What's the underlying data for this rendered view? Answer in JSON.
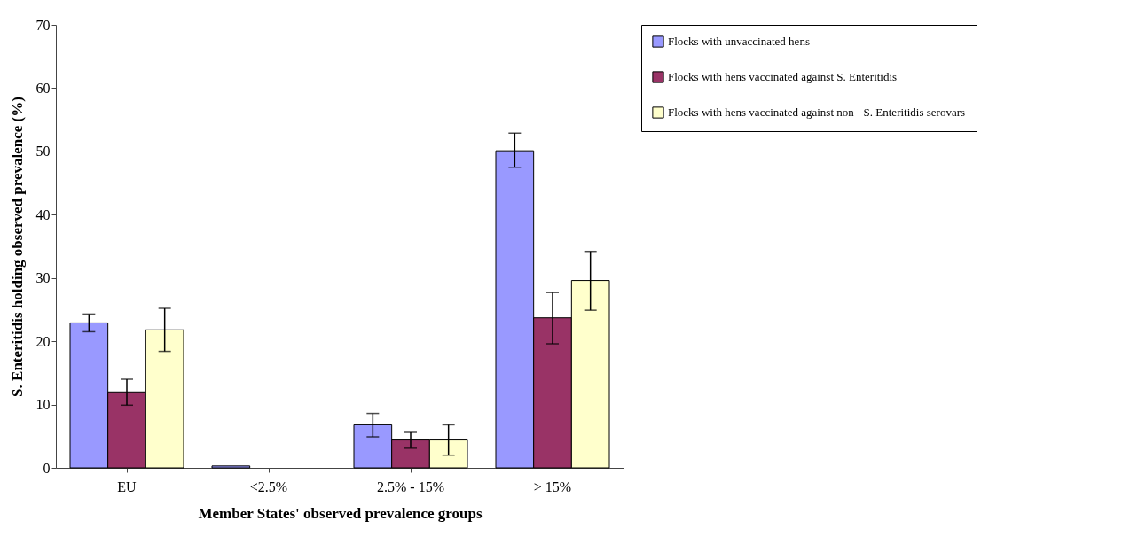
{
  "chart_data": {
    "type": "bar",
    "xlabel": "Member States' observed prevalence groups",
    "ylabel": "S. Enteritidis holding observed prevalence (%)",
    "categories": [
      "EU",
      "<2.5%",
      "2.5% - 15%",
      "> 15%"
    ],
    "series": [
      {
        "name": "Flocks with unvaccinated hens",
        "color": "#9999ff",
        "values": [
          22.9,
          0.3,
          6.8,
          50.1
        ],
        "errors": [
          [
            21.5,
            24.3
          ],
          null,
          [
            4.9,
            8.6
          ],
          [
            47.5,
            52.9
          ]
        ]
      },
      {
        "name": "Flocks with hens vaccinated against S. Enteritidis",
        "color": "#993366",
        "values": [
          12.0,
          null,
          4.4,
          23.7
        ],
        "errors": [
          [
            9.9,
            14.0
          ],
          null,
          [
            3.1,
            5.6
          ],
          [
            19.6,
            27.7
          ]
        ]
      },
      {
        "name": "Flocks with hens vaccinated against non - S. Enteritidis serovars",
        "color": "#ffffcc",
        "values": [
          21.8,
          null,
          4.4,
          29.6
        ],
        "errors": [
          [
            18.4,
            25.2
          ],
          null,
          [
            2.0,
            6.8
          ],
          [
            24.9,
            34.2
          ]
        ]
      }
    ],
    "ylim": [
      0,
      70
    ],
    "yticks": [
      0,
      10,
      20,
      30,
      40,
      50,
      60,
      70
    ],
    "grid": false,
    "legend": "right"
  }
}
